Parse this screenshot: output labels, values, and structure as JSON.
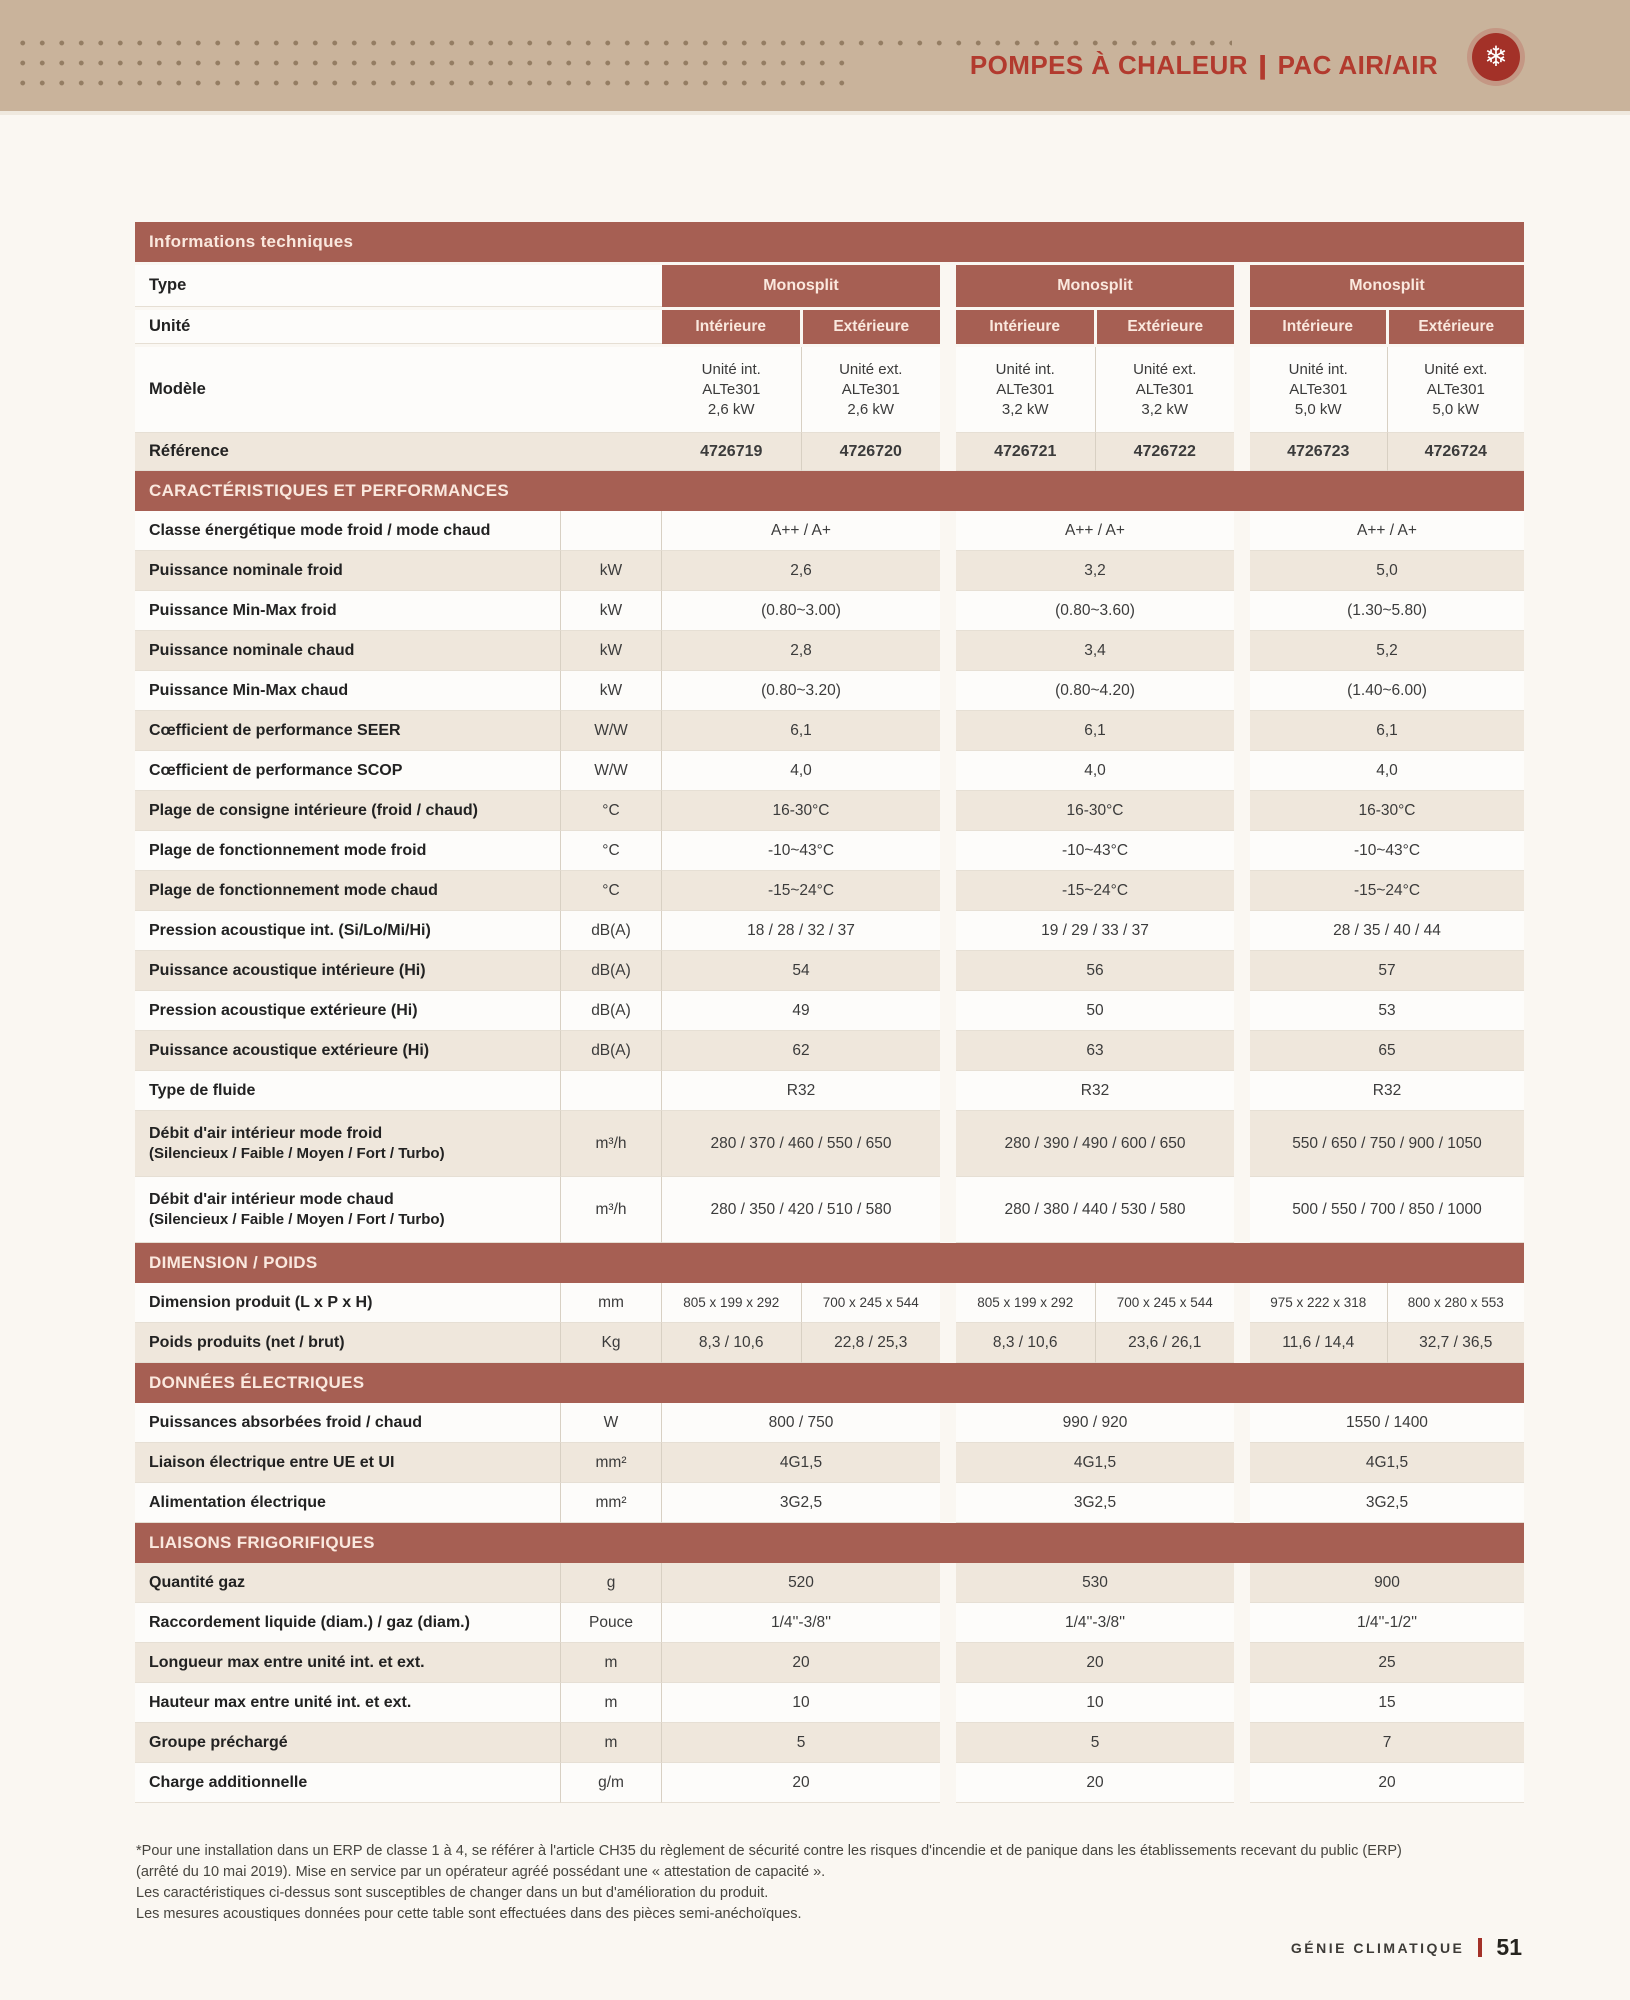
{
  "header": {
    "title_left": "POMPES À CHALEUR",
    "separator": "|",
    "title_right": "PAC AIR/AIR",
    "icon": "snowflake-icon",
    "icon_glyph": "❄"
  },
  "table": {
    "banner": "Informations techniques",
    "row_labels": {
      "type": "Type",
      "unit": "Unité",
      "model": "Modèle",
      "reference": "Référence"
    },
    "groups": [
      {
        "type": "Monosplit",
        "unit_columns": [
          "Intérieure",
          "Extérieure"
        ],
        "models": [
          [
            "Unité int.",
            "ALTe301",
            "2,6 kW"
          ],
          [
            "Unité ext.",
            "ALTe301",
            "2,6 kW"
          ]
        ],
        "references": [
          "4726719",
          "4726720"
        ]
      },
      {
        "type": "Monosplit",
        "unit_columns": [
          "Intérieure",
          "Extérieure"
        ],
        "models": [
          [
            "Unité int.",
            "ALTe301",
            "3,2 kW"
          ],
          [
            "Unité ext.",
            "ALTe301",
            "3,2 kW"
          ]
        ],
        "references": [
          "4726721",
          "4726722"
        ]
      },
      {
        "type": "Monosplit",
        "unit_columns": [
          "Intérieure",
          "Extérieure"
        ],
        "models": [
          [
            "Unité int.",
            "ALTe301",
            "5,0 kW"
          ],
          [
            "Unité ext.",
            "ALTe301",
            "5,0 kW"
          ]
        ],
        "references": [
          "4726723",
          "4726724"
        ]
      }
    ],
    "sections": [
      {
        "title": "CARACTÉRISTIQUES ET PERFORMANCES",
        "rows": [
          {
            "label": "Classe énergétique mode froid / mode chaud",
            "unit": "",
            "values": [
              "A++ / A+",
              "A++ / A+",
              "A++ / A+"
            ]
          },
          {
            "label": "Puissance nominale froid",
            "unit": "kW",
            "values": [
              "2,6",
              "3,2",
              "5,0"
            ]
          },
          {
            "label": "Puissance Min-Max froid",
            "unit": "kW",
            "values": [
              "(0.80~3.00)",
              "(0.80~3.60)",
              "(1.30~5.80)"
            ]
          },
          {
            "label": "Puissance nominale chaud",
            "unit": "kW",
            "values": [
              "2,8",
              "3,4",
              "5,2"
            ]
          },
          {
            "label": "Puissance Min-Max chaud",
            "unit": "kW",
            "values": [
              "(0.80~3.20)",
              "(0.80~4.20)",
              "(1.40~6.00)"
            ]
          },
          {
            "label": "Cœfficient de performance SEER",
            "unit": "W/W",
            "values": [
              "6,1",
              "6,1",
              "6,1"
            ]
          },
          {
            "label": "Cœfficient de performance SCOP",
            "unit": "W/W",
            "values": [
              "4,0",
              "4,0",
              "4,0"
            ]
          },
          {
            "label": "Plage de consigne intérieure (froid / chaud)",
            "unit": "°C",
            "values": [
              "16-30°C",
              "16-30°C",
              "16-30°C"
            ]
          },
          {
            "label": "Plage de fonctionnement mode froid",
            "unit": "°C",
            "values": [
              "-10~43°C",
              "-10~43°C",
              "-10~43°C"
            ]
          },
          {
            "label": "Plage de fonctionnement mode chaud",
            "unit": "°C",
            "values": [
              "-15~24°C",
              "-15~24°C",
              "-15~24°C"
            ]
          },
          {
            "label": "Pression acoustique int. (Si/Lo/Mi/Hi)",
            "unit": "dB(A)",
            "values": [
              "18 / 28 / 32 / 37",
              "19 / 29 / 33 / 37",
              "28 / 35 / 40 / 44"
            ]
          },
          {
            "label": "Puissance acoustique intérieure (Hi)",
            "unit": "dB(A)",
            "values": [
              "54",
              "56",
              "57"
            ]
          },
          {
            "label": "Pression acoustique extérieure (Hi)",
            "unit": "dB(A)",
            "values": [
              "49",
              "50",
              "53"
            ]
          },
          {
            "label": "Puissance acoustique extérieure (Hi)",
            "unit": "dB(A)",
            "values": [
              "62",
              "63",
              "65"
            ]
          },
          {
            "label": "Type de fluide",
            "unit": "",
            "values": [
              "R32",
              "R32",
              "R32"
            ]
          },
          {
            "label": "Débit d'air intérieur mode froid",
            "label2": "(Silencieux / Faible / Moyen / Fort / Turbo)",
            "unit": "m³/h",
            "tall": true,
            "values": [
              "280 / 370 / 460 / 550 / 650",
              "280 / 390 / 490 / 600 / 650",
              "550 / 650 / 750 / 900 / 1050"
            ]
          },
          {
            "label": "Débit d'air intérieur mode chaud",
            "label2": "(Silencieux / Faible / Moyen / Fort / Turbo)",
            "unit": "m³/h",
            "tall": true,
            "values": [
              "280 / 350 / 420 / 510 / 580",
              "280 / 380 / 440 / 530 / 580",
              "500 / 550 / 700 / 850 / 1000"
            ]
          }
        ]
      },
      {
        "title": "DIMENSION / POIDS",
        "rows": [
          {
            "label": "Dimension produit (L x P x H)",
            "unit": "mm",
            "small": true,
            "split_values": [
              [
                "805 x 199 x 292",
                "700 x 245 x 544"
              ],
              [
                "805 x 199 x 292",
                "700 x 245 x 544"
              ],
              [
                "975 x 222 x 318",
                "800 x 280 x 553"
              ]
            ]
          },
          {
            "label": "Poids produits (net / brut)",
            "unit": "Kg",
            "split_values": [
              [
                "8,3 / 10,6",
                "22,8 / 25,3"
              ],
              [
                "8,3 / 10,6",
                "23,6 / 26,1"
              ],
              [
                "11,6 / 14,4",
                "32,7 / 36,5"
              ]
            ]
          }
        ]
      },
      {
        "title": "DONNÉES ÉLECTRIQUES",
        "rows": [
          {
            "label": "Puissances absorbées froid / chaud",
            "unit": "W",
            "values": [
              "800 / 750",
              "990 / 920",
              "1550 / 1400"
            ]
          },
          {
            "label": "Liaison électrique entre UE et UI",
            "unit": "mm²",
            "values": [
              "4G1,5",
              "4G1,5",
              "4G1,5"
            ]
          },
          {
            "label": "Alimentation électrique",
            "unit": "mm²",
            "values": [
              "3G2,5",
              "3G2,5",
              "3G2,5"
            ]
          }
        ]
      },
      {
        "title": "LIAISONS FRIGORIFIQUES",
        "rows": [
          {
            "label": "Quantité gaz",
            "unit": "g",
            "values": [
              "520",
              "530",
              "900"
            ]
          },
          {
            "label": "Raccordement liquide (diam.) / gaz (diam.)",
            "unit": "Pouce",
            "values": [
              "1/4''-3/8''",
              "1/4''-3/8''",
              "1/4''-1/2''"
            ]
          },
          {
            "label": "Longueur max entre unité int. et ext.",
            "unit": "m",
            "values": [
              "20",
              "20",
              "25"
            ]
          },
          {
            "label": "Hauteur max entre unité int. et ext.",
            "unit": "m",
            "values": [
              "10",
              "10",
              "15"
            ]
          },
          {
            "label": "Groupe préchargé",
            "unit": "m",
            "values": [
              "5",
              "5",
              "7"
            ]
          },
          {
            "label": "Charge additionnelle",
            "unit": "g/m",
            "values": [
              "20",
              "20",
              "20"
            ]
          }
        ]
      }
    ]
  },
  "footnotes": [
    "*Pour une installation dans un ERP de classe 1 à 4, se référer à l'article CH35 du règlement de sécurité contre les risques d'incendie et de panique dans les établissements recevant du public (ERP)",
    "(arrêté du 10 mai 2019). Mise en service par un opérateur agréé possédant une « attestation de capacité ».",
    "Les caractéristiques ci-dessus sont susceptibles de changer dans un but d'amélioration du produit.",
    "Les mesures acoustiques données pour cette table sont effectuées dans des pièces semi-anéchoïques."
  ],
  "footer": {
    "brand": "GÉNIE CLIMATIQUE",
    "separator": "|",
    "page_number": "51"
  },
  "colors": {
    "band_tan": "#c9b39b",
    "dot_brown": "#8b7459",
    "title_red": "#b23a2e",
    "icon_circle_red": "#a33128",
    "banner_terracotta": "#a65f53",
    "banner_text": "#fae8de",
    "row_beige": "#efe7dc",
    "row_white": "#fdfcfa",
    "page_background": "#faf7f2"
  }
}
